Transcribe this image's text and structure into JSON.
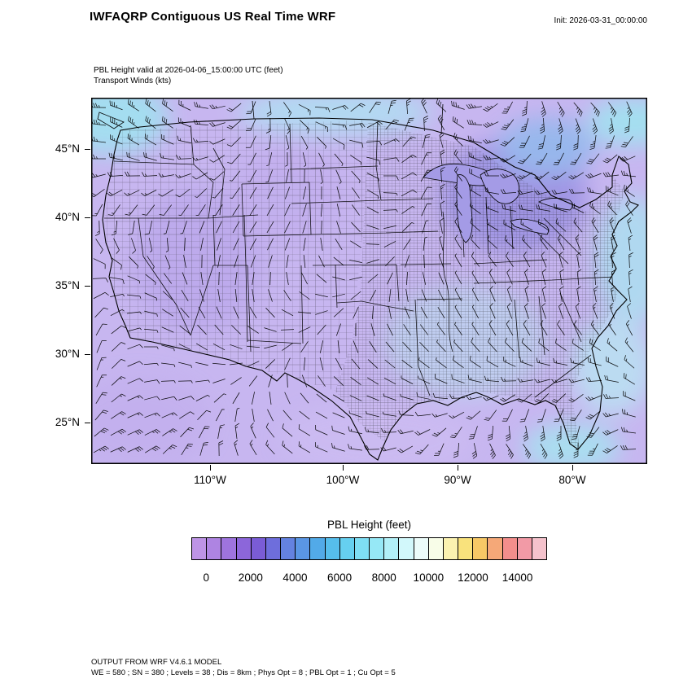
{
  "header": {
    "title": "IWFAQRP Contiguous US Real Time WRF",
    "init_label": "Init: 2026-03-31_00:00:00"
  },
  "subtitle": {
    "line1": "PBL Height valid at 2026-04-06_15:00:00 UTC   (feet)",
    "line2": "Transport Winds   (kts)"
  },
  "axes": {
    "lat_ticks": [
      "45°N",
      "40°N",
      "35°N",
      "30°N",
      "25°N"
    ],
    "lon_ticks": [
      "110°W",
      "100°W",
      "90°W",
      "80°W"
    ]
  },
  "colorbar": {
    "title": "PBL Height  (feet)",
    "tick_labels": [
      "0",
      "2000",
      "4000",
      "6000",
      "8000",
      "10000",
      "12000",
      "14000"
    ],
    "colors": [
      "#BE94E6",
      "#AE84E2",
      "#9E74DE",
      "#8C66DA",
      "#7A5CD6",
      "#6E6EDC",
      "#6482E0",
      "#5A96E4",
      "#52AAE8",
      "#56BEEC",
      "#66D0F0",
      "#7EDEF4",
      "#96E8F6",
      "#B2F0F8",
      "#D2F8FB",
      "#ECFCFA",
      "#F8FDE8",
      "#FBF2B0",
      "#F9E27C",
      "#F7C866",
      "#F5A878",
      "#F38E8C",
      "#F29AA6",
      "#F5C2CC"
    ]
  },
  "footer": {
    "line1": "OUTPUT FROM WRF V4.6.1 MODEL",
    "line2": "WE = 580 ; SN = 380 ; Levels = 38 ; Dis = 8km ; Phys Opt = 8 ; PBL Opt = 1 ; Cu Opt = 5"
  },
  "chart_data": {
    "type": "heatmap",
    "title": "PBL Height valid at 2026-04-06_15:00:00 UTC (feet) with Transport Winds (kts)",
    "model": "WRF V4.6.1",
    "run_title": "IWFAQRP Contiguous US Real Time WRF",
    "init_time": "2026-03-31_00:00:00",
    "valid_time": "2026-04-06_15:00:00 UTC",
    "field": "PBL Height",
    "units": "feet",
    "overlay": "Transport Winds (kts) shown as wind barbs",
    "region": "Contiguous United States",
    "x_axis": {
      "label": "longitude",
      "ticks": [
        "110°W",
        "100°W",
        "90°W",
        "80°W"
      ]
    },
    "y_axis": {
      "label": "latitude",
      "ticks": [
        "45°N",
        "40°N",
        "35°N",
        "30°N",
        "25°N"
      ]
    },
    "colorbar_levels": [
      0,
      2000,
      4000,
      6000,
      8000,
      10000,
      12000,
      14000
    ],
    "colorbar_range": [
      0,
      14000
    ],
    "grid_config": {
      "WE": 580,
      "SN": 380,
      "Levels": 38,
      "Dis": "8km",
      "Phys_Opt": 8,
      "PBL_Opt": 1,
      "Cu_Opt": 5
    },
    "value_summary": "Field dominated by low PBL heights of 0-2000 ft (purple shades) across nearly the entire domain, with scattered 2000-6000 ft patches (blue/cyan) along the domain edges, the Great Lakes, the Atlantic coast and Florida"
  }
}
